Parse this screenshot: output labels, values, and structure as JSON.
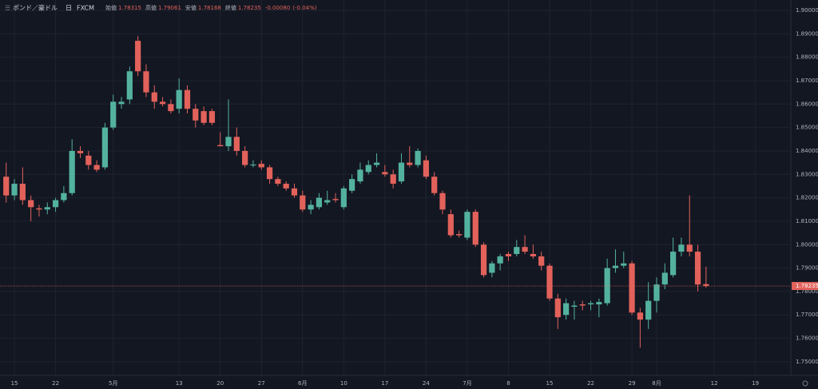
{
  "chart_data": {
    "type": "candlestick",
    "symbol": "ポンド／豪ドル",
    "interval": "日",
    "source": "FXCM",
    "ohlc_labels": [
      "始値",
      "高値",
      "安値",
      "終値"
    ],
    "ohlc_values": [
      1.78315,
      1.79061,
      1.78168,
      1.78235
    ],
    "change": {
      "value": -0.0008,
      "label": "-0.00080"
    },
    "change_pct": {
      "value": -0.04,
      "label": "(-0.04%)"
    },
    "up_color": "#53b29f",
    "down_color": "#e2625b",
    "grid": true,
    "x": [
      0,
      1,
      2,
      3,
      4,
      5,
      6,
      7,
      8,
      9,
      10,
      11,
      12,
      13,
      14,
      15,
      16,
      17,
      18,
      19,
      20,
      21,
      22,
      23,
      24,
      25,
      26,
      27,
      28,
      29,
      30,
      31,
      32,
      33,
      34,
      35,
      36,
      37,
      38,
      39,
      40,
      41,
      42,
      43,
      44,
      45,
      46,
      47,
      48,
      49,
      50,
      51,
      52,
      53,
      54,
      55,
      56,
      57,
      58,
      59,
      60,
      61,
      62,
      63,
      64,
      65,
      66,
      67,
      68,
      69,
      70,
      71,
      72,
      73,
      74,
      75,
      76,
      77,
      78,
      79,
      80,
      81,
      82,
      83,
      84,
      85
    ],
    "open": [
      1.829,
      1.821,
      1.826,
      1.819,
      1.8155,
      1.815,
      1.816,
      1.819,
      1.822,
      1.84,
      1.838,
      1.834,
      1.833,
      1.85,
      1.86,
      1.862,
      1.887,
      1.874,
      1.865,
      1.861,
      1.86,
      1.858,
      1.866,
      1.858,
      1.857,
      1.857,
      1.8425,
      1.842,
      1.846,
      1.84,
      1.8338,
      1.8345,
      1.833,
      1.828,
      1.826,
      1.824,
      1.821,
      1.815,
      1.816,
      1.818,
      1.8195,
      1.816,
      1.823,
      1.827,
      1.831,
      1.834,
      1.831,
      1.83,
      1.827,
      1.835,
      1.834,
      1.836,
      1.829,
      1.822,
      1.813,
      1.8045,
      1.803,
      1.814,
      1.8,
      1.788,
      1.792,
      1.796,
      1.796,
      1.799,
      1.796,
      1.795,
      1.791,
      1.777,
      1.77,
      1.7735,
      1.7745,
      1.7745,
      1.7745,
      1.775,
      1.79,
      1.791,
      1.792,
      1.771,
      1.768,
      1.776,
      1.783,
      1.787,
      1.797,
      1.8,
      1.797,
      1.78315
    ],
    "high": [
      1.835,
      1.828,
      1.833,
      1.821,
      1.817,
      1.818,
      1.82,
      1.825,
      1.845,
      1.842,
      1.84,
      1.836,
      1.852,
      1.864,
      1.863,
      1.876,
      1.889,
      1.877,
      1.868,
      1.863,
      1.862,
      1.871,
      1.868,
      1.86,
      1.859,
      1.858,
      1.848,
      1.862,
      1.85,
      1.842,
      1.836,
      1.836,
      1.834,
      1.829,
      1.827,
      1.826,
      1.823,
      1.819,
      1.822,
      1.823,
      1.822,
      1.825,
      1.83,
      1.835,
      1.836,
      1.839,
      1.834,
      1.832,
      1.839,
      1.842,
      1.841,
      1.838,
      1.831,
      1.823,
      1.815,
      1.806,
      1.815,
      1.815,
      1.801,
      1.793,
      1.796,
      1.797,
      1.802,
      1.804,
      1.8,
      1.797,
      1.792,
      1.779,
      1.777,
      1.776,
      1.776,
      1.776,
      1.777,
      1.794,
      1.798,
      1.797,
      1.793,
      1.773,
      1.784,
      1.786,
      1.792,
      1.803,
      1.803,
      1.821,
      1.8,
      1.79061
    ],
    "low": [
      1.818,
      1.819,
      1.817,
      1.81,
      1.812,
      1.813,
      1.814,
      1.818,
      1.821,
      1.837,
      1.832,
      1.831,
      1.832,
      1.849,
      1.858,
      1.86,
      1.872,
      1.863,
      1.858,
      1.859,
      1.856,
      1.856,
      1.856,
      1.85,
      1.851,
      1.851,
      1.842,
      1.84,
      1.838,
      1.833,
      1.833,
      1.832,
      1.826,
      1.825,
      1.823,
      1.82,
      1.814,
      1.813,
      1.815,
      1.817,
      1.818,
      1.815,
      1.822,
      1.826,
      1.83,
      1.833,
      1.829,
      1.824,
      1.826,
      1.833,
      1.833,
      1.828,
      1.821,
      1.813,
      1.803,
      1.803,
      1.802,
      1.799,
      1.786,
      1.786,
      1.789,
      1.793,
      1.795,
      1.796,
      1.794,
      1.789,
      1.776,
      1.764,
      1.768,
      1.768,
      1.772,
      1.772,
      1.769,
      1.774,
      1.788,
      1.79,
      1.77,
      1.756,
      1.764,
      1.771,
      1.781,
      1.786,
      1.795,
      1.795,
      1.78,
      1.78168
    ],
    "close": [
      1.821,
      1.826,
      1.819,
      1.816,
      1.815,
      1.816,
      1.819,
      1.822,
      1.84,
      1.839,
      1.834,
      1.832,
      1.85,
      1.861,
      1.861,
      1.874,
      1.874,
      1.865,
      1.861,
      1.86,
      1.857,
      1.866,
      1.858,
      1.853,
      1.852,
      1.852,
      1.842,
      1.846,
      1.84,
      1.834,
      1.8342,
      1.833,
      1.828,
      1.826,
      1.824,
      1.821,
      1.815,
      1.817,
      1.82,
      1.819,
      1.819,
      1.824,
      1.828,
      1.832,
      1.834,
      1.835,
      1.83,
      1.826,
      1.835,
      1.834,
      1.84,
      1.829,
      1.822,
      1.815,
      1.804,
      1.804,
      1.814,
      1.8,
      1.787,
      1.792,
      1.795,
      1.795,
      1.799,
      1.797,
      1.795,
      1.791,
      1.777,
      1.769,
      1.775,
      1.774,
      1.774,
      1.775,
      1.7755,
      1.79,
      1.791,
      1.792,
      1.771,
      1.768,
      1.776,
      1.783,
      1.788,
      1.797,
      1.8,
      1.797,
      1.783,
      1.78235
    ],
    "xlim": [
      -0.75,
      95.3
    ],
    "xticks": [
      {
        "value": 1,
        "label": "15"
      },
      {
        "value": 6,
        "label": "22"
      },
      {
        "value": 13,
        "label": "5月"
      },
      {
        "value": 21,
        "label": "13"
      },
      {
        "value": 26,
        "label": "20"
      },
      {
        "value": 31,
        "label": "27"
      },
      {
        "value": 36,
        "label": "6月"
      },
      {
        "value": 41,
        "label": "10"
      },
      {
        "value": 46,
        "label": "17"
      },
      {
        "value": 51,
        "label": "24"
      },
      {
        "value": 56,
        "label": "7月"
      },
      {
        "value": 61,
        "label": "8"
      },
      {
        "value": 66,
        "label": "15"
      },
      {
        "value": 71,
        "label": "22"
      },
      {
        "value": 76,
        "label": "29"
      },
      {
        "value": 79,
        "label": "8月"
      },
      {
        "value": 86,
        "label": "12"
      },
      {
        "value": 91,
        "label": "19"
      }
    ],
    "ylim": [
      1.74417,
      1.90443
    ],
    "yticks": [
      {
        "value": 1.75,
        "label": "1.75000"
      },
      {
        "value": 1.76,
        "label": "1.76000"
      },
      {
        "value": 1.77,
        "label": "1.77000"
      },
      {
        "value": 1.78,
        "label": "1.78000"
      },
      {
        "value": 1.79,
        "label": "1.79000"
      },
      {
        "value": 1.8,
        "label": "1.80000"
      },
      {
        "value": 1.81,
        "label": "1.81000"
      },
      {
        "value": 1.82,
        "label": "1.82000"
      },
      {
        "value": 1.83,
        "label": "1.83000"
      },
      {
        "value": 1.84,
        "label": "1.84000"
      },
      {
        "value": 1.85,
        "label": "1.85000"
      },
      {
        "value": 1.86,
        "label": "1.86000"
      },
      {
        "value": 1.87,
        "label": "1.87000"
      },
      {
        "value": 1.88,
        "label": "1.88000"
      },
      {
        "value": 1.89,
        "label": "1.89000"
      },
      {
        "value": 1.9,
        "label": "1.90000"
      }
    ]
  }
}
